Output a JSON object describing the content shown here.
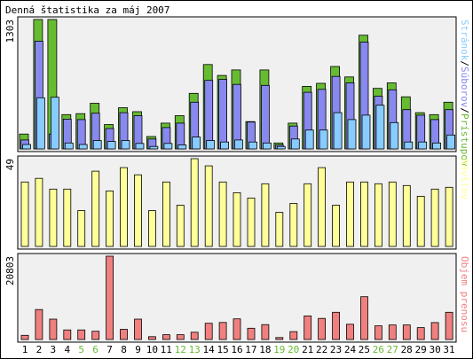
{
  "title": "Denná štatistika za máj 2007",
  "colors": {
    "background": "#f0f0f0",
    "frame": "#000000",
    "hits": "#66bb33",
    "files": "#8888ee",
    "pages": "#88ccff",
    "visits": "#ffff99",
    "volume": "#f08080",
    "weekend": "#66bb33",
    "weekday": "#000000"
  },
  "chart_data": [
    {
      "type": "bar",
      "name": "traffic",
      "ymax": 1303,
      "ymax_label": "1303",
      "legend": [
        "Stránok",
        "Súborov",
        "Prístupov"
      ],
      "legend_sep": "/",
      "categories": [
        "1",
        "2",
        "3",
        "4",
        "5",
        "6",
        "7",
        "8",
        "9",
        "10",
        "11",
        "12",
        "13",
        "14",
        "15",
        "16",
        "17",
        "18",
        "19",
        "20",
        "21",
        "22",
        "23",
        "24",
        "25",
        "26",
        "27",
        "28",
        "29",
        "30",
        "31"
      ],
      "series": [
        {
          "name": "Prístupov",
          "color": "#66bb33",
          "values": [
            150,
            1303,
            1303,
            345,
            355,
            460,
            245,
            415,
            375,
            125,
            260,
            335,
            560,
            850,
            740,
            795,
            275,
            795,
            60,
            260,
            630,
            660,
            830,
            725,
            1145,
            610,
            665,
            525,
            365,
            345,
            470
          ]
        },
        {
          "name": "Súborov",
          "color": "#8888ee",
          "values": [
            90,
            1085,
            150,
            300,
            295,
            360,
            205,
            365,
            335,
            100,
            215,
            260,
            470,
            690,
            700,
            650,
            270,
            640,
            40,
            230,
            570,
            600,
            730,
            665,
            1075,
            530,
            595,
            395,
            340,
            295,
            395
          ]
        },
        {
          "name": "Stránok",
          "color": "#88ccff",
          "values": [
            45,
            515,
            520,
            60,
            45,
            85,
            75,
            85,
            55,
            25,
            55,
            40,
            120,
            85,
            70,
            90,
            70,
            60,
            25,
            100,
            190,
            190,
            365,
            295,
            340,
            440,
            265,
            70,
            70,
            60,
            140
          ]
        }
      ]
    },
    {
      "type": "bar",
      "name": "visits",
      "ymax": 49,
      "ymax_label": "49",
      "legend": [
        "Návštev"
      ],
      "categories": [
        "1",
        "2",
        "3",
        "4",
        "5",
        "6",
        "7",
        "8",
        "9",
        "10",
        "11",
        "12",
        "13",
        "14",
        "15",
        "16",
        "17",
        "18",
        "19",
        "20",
        "21",
        "22",
        "23",
        "24",
        "25",
        "26",
        "27",
        "28",
        "29",
        "30",
        "31"
      ],
      "series": [
        {
          "name": "Návštev",
          "color": "#ffff99",
          "values": [
            36,
            38,
            32,
            32,
            20,
            42,
            31,
            44,
            40,
            20,
            36,
            23,
            49,
            45,
            36,
            30,
            27,
            35,
            19,
            24,
            35,
            44,
            23,
            36,
            36,
            35,
            36,
            34,
            28,
            32,
            33
          ]
        }
      ]
    },
    {
      "type": "bar",
      "name": "volume",
      "ymax": 20803,
      "ymax_label": "20803",
      "legend": [
        "Objem prenosu"
      ],
      "categories": [
        "1",
        "2",
        "3",
        "4",
        "5",
        "6",
        "7",
        "8",
        "9",
        "10",
        "11",
        "12",
        "13",
        "14",
        "15",
        "16",
        "17",
        "18",
        "19",
        "20",
        "21",
        "22",
        "23",
        "24",
        "25",
        "26",
        "27",
        "28",
        "29",
        "30",
        "31"
      ],
      "series": [
        {
          "name": "Objem prenosu",
          "color": "#f08080",
          "values": [
            1030,
            7470,
            5090,
            2380,
            2380,
            2060,
            20803,
            2540,
            5090,
            710,
            1190,
            1190,
            1810,
            4050,
            4260,
            5160,
            2800,
            3710,
            480,
            1970,
            5890,
            5270,
            6790,
            3800,
            10700,
            3400,
            3630,
            3630,
            2960,
            4230,
            6790
          ]
        }
      ]
    }
  ],
  "day_labels": [
    "1",
    "2",
    "3",
    "4",
    "5",
    "6",
    "7",
    "8",
    "9",
    "10",
    "11",
    "12",
    "13",
    "14",
    "15",
    "16",
    "17",
    "18",
    "19",
    "20",
    "21",
    "22",
    "23",
    "24",
    "25",
    "26",
    "27",
    "28",
    "29",
    "30",
    "31"
  ],
  "weekend_days": [
    "5",
    "6",
    "12",
    "13",
    "19",
    "20",
    "26",
    "27"
  ]
}
